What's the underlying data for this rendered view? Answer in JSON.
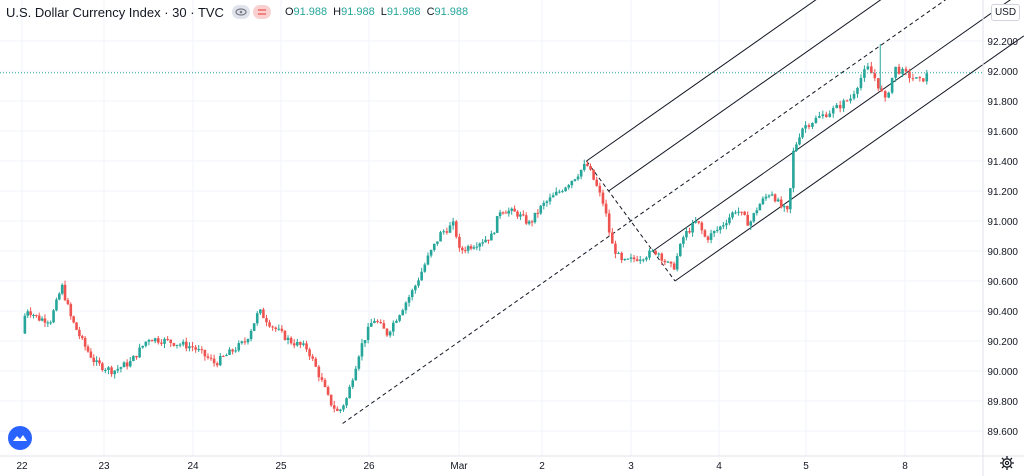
{
  "header": {
    "title": "U.S. Dollar Currency Index · 30 · TVC",
    "ohlc": [
      {
        "key": "O",
        "value": "91.988"
      },
      {
        "key": "H",
        "value": "91.988"
      },
      {
        "key": "L",
        "value": "91.988"
      },
      {
        "key": "C",
        "value": "91.988"
      }
    ]
  },
  "currency_label": "USD",
  "icons": {
    "visibility": "eye-icon",
    "remove": "close-icon",
    "logo": "tradingview-logo",
    "settings": "gear-icon"
  },
  "colors": {
    "up": "#26a69a",
    "down": "#ef5350",
    "channel": "#131722",
    "current_price_line": "#26a69a",
    "grid": "#f0f3fa"
  },
  "chart_data": {
    "type": "candlestick",
    "title": "U.S. Dollar Currency Index",
    "interval": "30",
    "source": "TVC",
    "current_price": 91.988,
    "ylim": [
      89.5,
      92.35
    ],
    "y_ticks": [
      "89.600",
      "89.800",
      "90.000",
      "90.200",
      "90.400",
      "90.600",
      "90.800",
      "91.000",
      "91.200",
      "91.400",
      "91.600",
      "91.800",
      "92.000",
      "92.200"
    ],
    "x_ticks": [
      "22",
      "23",
      "24",
      "25",
      "26",
      "Mar",
      "2",
      "3",
      "4",
      "5",
      "8"
    ],
    "price_path": [
      {
        "x": 0.0,
        "y": 90.25
      },
      {
        "x": 0.05,
        "y": 90.42
      },
      {
        "x": 0.2,
        "y": 90.35
      },
      {
        "x": 0.35,
        "y": 90.34
      },
      {
        "x": 0.45,
        "y": 90.5
      },
      {
        "x": 0.48,
        "y": 90.58
      },
      {
        "x": 0.6,
        "y": 90.35
      },
      {
        "x": 0.75,
        "y": 90.18
      },
      {
        "x": 0.9,
        "y": 90.05
      },
      {
        "x": 1.1,
        "y": 90.0
      },
      {
        "x": 1.3,
        "y": 90.06
      },
      {
        "x": 1.5,
        "y": 90.22
      },
      {
        "x": 1.7,
        "y": 90.2
      },
      {
        "x": 2.0,
        "y": 90.16
      },
      {
        "x": 2.25,
        "y": 90.05
      },
      {
        "x": 2.6,
        "y": 90.2
      },
      {
        "x": 2.75,
        "y": 90.4
      },
      {
        "x": 2.9,
        "y": 90.3
      },
      {
        "x": 3.1,
        "y": 90.2
      },
      {
        "x": 3.3,
        "y": 90.15
      },
      {
        "x": 3.45,
        "y": 89.95
      },
      {
        "x": 3.55,
        "y": 89.8
      },
      {
        "x": 3.65,
        "y": 89.72
      },
      {
        "x": 3.75,
        "y": 89.82
      },
      {
        "x": 3.9,
        "y": 90.15
      },
      {
        "x": 4.05,
        "y": 90.35
      },
      {
        "x": 4.2,
        "y": 90.25
      },
      {
        "x": 4.35,
        "y": 90.4
      },
      {
        "x": 4.5,
        "y": 90.55
      },
      {
        "x": 4.65,
        "y": 90.75
      },
      {
        "x": 4.8,
        "y": 90.92
      },
      {
        "x": 4.95,
        "y": 90.98
      },
      {
        "x": 5.0,
        "y": 90.8
      },
      {
        "x": 5.2,
        "y": 90.85
      },
      {
        "x": 5.4,
        "y": 90.9
      },
      {
        "x": 5.5,
        "y": 91.08
      },
      {
        "x": 5.7,
        "y": 91.05
      },
      {
        "x": 5.85,
        "y": 90.98
      },
      {
        "x": 6.0,
        "y": 91.1
      },
      {
        "x": 6.2,
        "y": 91.2
      },
      {
        "x": 6.38,
        "y": 91.3
      },
      {
        "x": 6.5,
        "y": 91.38
      },
      {
        "x": 6.6,
        "y": 91.25
      },
      {
        "x": 6.7,
        "y": 91.1
      },
      {
        "x": 6.78,
        "y": 90.85
      },
      {
        "x": 6.9,
        "y": 90.72
      },
      {
        "x": 7.1,
        "y": 90.76
      },
      {
        "x": 7.3,
        "y": 90.8
      },
      {
        "x": 7.4,
        "y": 90.72
      },
      {
        "x": 7.48,
        "y": 90.68
      },
      {
        "x": 7.6,
        "y": 90.9
      },
      {
        "x": 7.75,
        "y": 91.0
      },
      {
        "x": 7.85,
        "y": 90.88
      },
      {
        "x": 8.0,
        "y": 90.95
      },
      {
        "x": 8.2,
        "y": 91.08
      },
      {
        "x": 8.35,
        "y": 90.98
      },
      {
        "x": 8.45,
        "y": 91.1
      },
      {
        "x": 8.6,
        "y": 91.2
      },
      {
        "x": 8.7,
        "y": 91.1
      },
      {
        "x": 8.8,
        "y": 91.05
      },
      {
        "x": 8.85,
        "y": 91.45
      },
      {
        "x": 8.95,
        "y": 91.62
      },
      {
        "x": 9.1,
        "y": 91.68
      },
      {
        "x": 9.3,
        "y": 91.75
      },
      {
        "x": 9.45,
        "y": 91.82
      },
      {
        "x": 9.55,
        "y": 91.95
      },
      {
        "x": 9.62,
        "y": 92.02
      },
      {
        "x": 9.7,
        "y": 91.95
      },
      {
        "x": 9.8,
        "y": 91.8
      },
      {
        "x": 9.9,
        "y": 92.02
      },
      {
        "x": 10.0,
        "y": 91.98
      },
      {
        "x": 10.15,
        "y": 91.93
      },
      {
        "x": 10.25,
        "y": 91.988
      }
    ],
    "spike": {
      "x": 9.75,
      "y": 92.18
    },
    "pitchfork": {
      "pivot": {
        "x": 3.7,
        "y": 89.65
      },
      "high": {
        "x": 6.5,
        "y": 91.4
      },
      "low": {
        "x": 7.5,
        "y": 90.6
      },
      "end_x": 11.2
    }
  }
}
